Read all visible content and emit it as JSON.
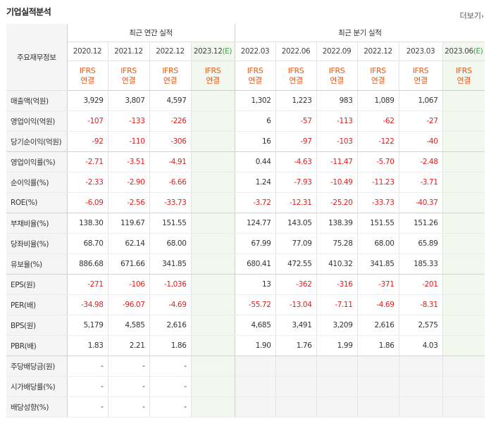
{
  "title": "기업실적분석",
  "more_label": "더보기",
  "header": {
    "row_label": "주요재무정보",
    "annual": "최근 연간 실적",
    "quarterly": "최근 분기 실적",
    "annual_periods": [
      "2020.12",
      "2021.12",
      "2022.12",
      "2023.12"
    ],
    "annual_est_mark": "(E)",
    "quarter_periods": [
      "2022.03",
      "2022.06",
      "2022.09",
      "2022.12",
      "2023.03",
      "2023.06"
    ],
    "quarter_est_mark": "(E)",
    "ifrs": "IFRS",
    "consolidated": "연결"
  },
  "rows": [
    {
      "label": "매출액(억원)",
      "annual": [
        "3,929",
        "3,807",
        "4,597",
        ""
      ],
      "quarter": [
        "1,302",
        "1,223",
        "983",
        "1,089",
        "1,067",
        ""
      ]
    },
    {
      "label": "영업이익(억원)",
      "annual": [
        "-107",
        "-133",
        "-226",
        ""
      ],
      "quarter": [
        "6",
        "-57",
        "-113",
        "-62",
        "-27",
        ""
      ]
    },
    {
      "label": "당기순이익(억원)",
      "annual": [
        "-92",
        "-110",
        "-306",
        ""
      ],
      "quarter": [
        "16",
        "-97",
        "-103",
        "-122",
        "-40",
        ""
      ]
    },
    {
      "label": "영업이익률(%)",
      "annual": [
        "-2.71",
        "-3.51",
        "-4.91",
        ""
      ],
      "quarter": [
        "0.44",
        "-4.63",
        "-11.47",
        "-5.70",
        "-2.48",
        ""
      ]
    },
    {
      "label": "순이익률(%)",
      "annual": [
        "-2.33",
        "-2.90",
        "-6.66",
        ""
      ],
      "quarter": [
        "1.24",
        "-7.93",
        "-10.49",
        "-11.23",
        "-3.71",
        ""
      ]
    },
    {
      "label": "ROE(%)",
      "annual": [
        "-6.09",
        "-2.56",
        "-33.73",
        ""
      ],
      "quarter": [
        "-3.72",
        "-12.31",
        "-25.20",
        "-33.73",
        "-40.37",
        ""
      ]
    },
    {
      "label": "부채비율(%)",
      "annual": [
        "138.30",
        "119.67",
        "151.55",
        ""
      ],
      "quarter": [
        "124.77",
        "143.05",
        "138.39",
        "151.55",
        "151.26",
        ""
      ]
    },
    {
      "label": "당좌비율(%)",
      "annual": [
        "68.70",
        "62.14",
        "68.00",
        ""
      ],
      "quarter": [
        "67.99",
        "77.09",
        "75.28",
        "68.00",
        "65.89",
        ""
      ]
    },
    {
      "label": "유보율(%)",
      "annual": [
        "886.68",
        "671.66",
        "341.85",
        ""
      ],
      "quarter": [
        "680.41",
        "472.55",
        "410.32",
        "341.85",
        "185.33",
        ""
      ]
    },
    {
      "label": "EPS(원)",
      "annual": [
        "-271",
        "-106",
        "-1,036",
        ""
      ],
      "quarter": [
        "13",
        "-362",
        "-316",
        "-371",
        "-201",
        ""
      ]
    },
    {
      "label": "PER(배)",
      "annual": [
        "-34.98",
        "-96.07",
        "-4.69",
        ""
      ],
      "quarter": [
        "-55.72",
        "-13.04",
        "-7.11",
        "-4.69",
        "-8.31",
        ""
      ]
    },
    {
      "label": "BPS(원)",
      "annual": [
        "5,179",
        "4,585",
        "2,616",
        ""
      ],
      "quarter": [
        "4,685",
        "3,491",
        "3,209",
        "2,616",
        "2,575",
        ""
      ]
    },
    {
      "label": "PBR(배)",
      "annual": [
        "1.83",
        "2.21",
        "1.86",
        ""
      ],
      "quarter": [
        "1.90",
        "1.76",
        "1.99",
        "1.86",
        "4.03",
        ""
      ]
    },
    {
      "label": "주당배당금(원)",
      "annual": [
        "-",
        "-",
        "-",
        ""
      ],
      "quarter": [
        "",
        "",
        "",
        "",
        "",
        ""
      ]
    },
    {
      "label": "시가배당률(%)",
      "annual": [
        "-",
        "-",
        "-",
        ""
      ],
      "quarter": [
        "",
        "",
        "",
        "",
        "",
        ""
      ]
    },
    {
      "label": "배당성향(%)",
      "annual": [
        "-",
        "-",
        "-",
        ""
      ],
      "quarter": [
        "",
        "",
        "",
        "",
        "",
        ""
      ]
    }
  ],
  "colors": {
    "negative": "#e21d1d",
    "ifrs": "#ea5a17",
    "estimate_bg": "#f3f8ee",
    "label_bg": "#f5f5f5"
  }
}
